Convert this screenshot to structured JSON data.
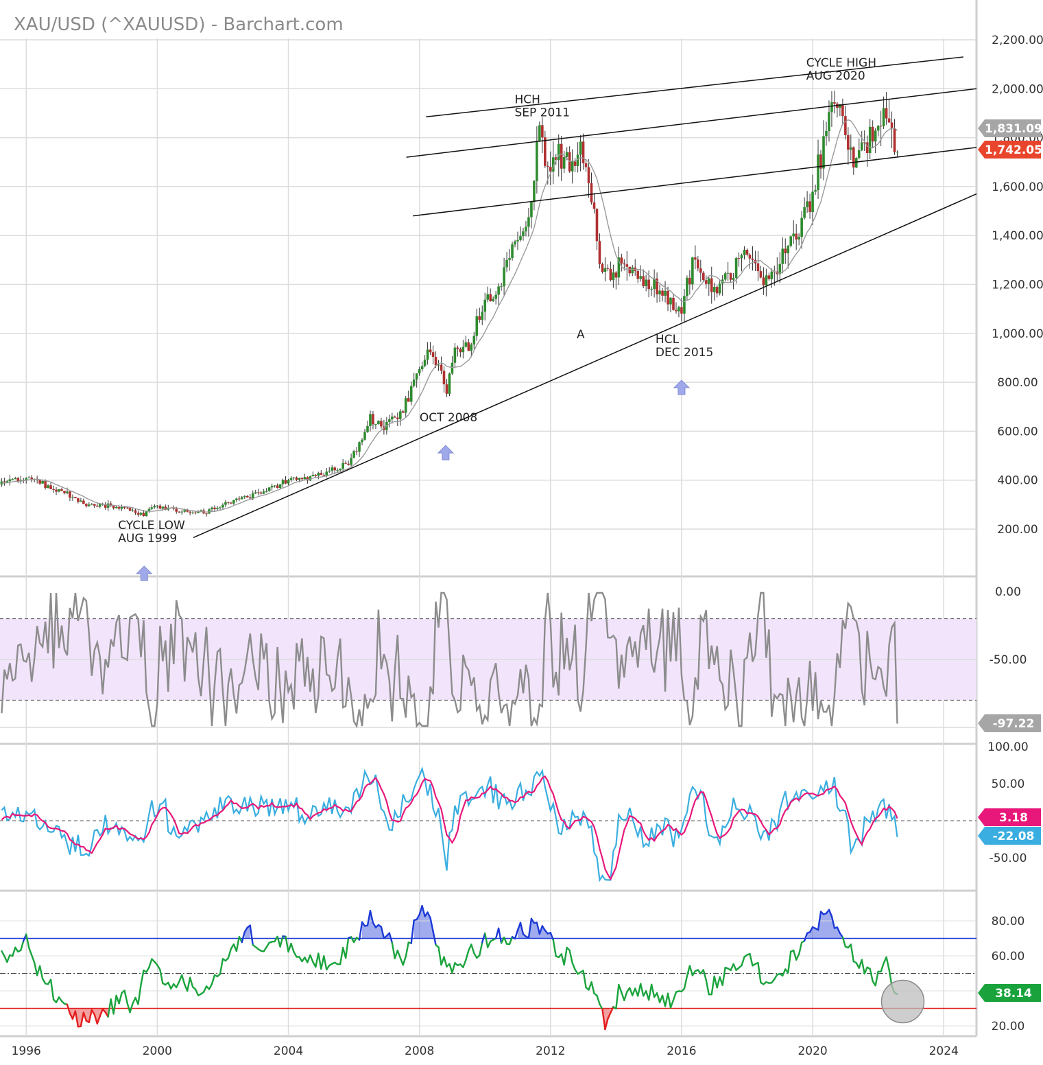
{
  "title": "XAU/USD (^XAUUSD) - Barchart.com",
  "colors": {
    "up": "#2e8b2e",
    "down": "#b03030",
    "ma": "#9a9a9a",
    "trend": "#111111",
    "wr": "#8c8c8c",
    "wr_band": "#f1e4fb",
    "cci_fast": "#3aaee0",
    "cci_slow": "#e8177a",
    "rsi": "#1aa33c",
    "rsi_over": "#1c39d6",
    "rsi_under": "#e31c1c",
    "badge_grey": "#a6a6a6",
    "badge_red": "#e8452c",
    "badge_green": "#1aa33c",
    "badge_blue": "#3aaee0",
    "badge_pink": "#e8177a"
  },
  "chart_data": [
    {
      "type": "candlestick",
      "name": "price",
      "x_ticks": [
        "1996",
        "2000",
        "2004",
        "2008",
        "2012",
        "2016",
        "2020",
        "2024"
      ],
      "y_ticks": [
        "2,200.00",
        "2,000.00",
        "1,800.00",
        "1,600.00",
        "1,400.00",
        "1,200.00",
        "1,000.00",
        "800.00",
        "600.00",
        "400.00",
        "200.00"
      ],
      "ylim": [
        60,
        2200
      ],
      "xlim": [
        1995.2,
        2025
      ],
      "anchors": [
        [
          1995.0,
          385
        ],
        [
          1996.0,
          405
        ],
        [
          1996.6,
          380
        ],
        [
          1997.2,
          345
        ],
        [
          1997.8,
          300
        ],
        [
          1998.5,
          295
        ],
        [
          1999.0,
          285
        ],
        [
          1999.6,
          258
        ],
        [
          1999.8,
          300
        ],
        [
          2000.3,
          285
        ],
        [
          2001.0,
          265
        ],
        [
          2001.5,
          272
        ],
        [
          2002.0,
          300
        ],
        [
          2002.8,
          330
        ],
        [
          2003.5,
          365
        ],
        [
          2004.0,
          400
        ],
        [
          2004.6,
          410
        ],
        [
          2005.2,
          435
        ],
        [
          2005.8,
          470
        ],
        [
          2006.2,
          550
        ],
        [
          2006.5,
          650
        ],
        [
          2006.9,
          620
        ],
        [
          2007.4,
          670
        ],
        [
          2007.8,
          780
        ],
        [
          2008.2,
          920
        ],
        [
          2008.6,
          860
        ],
        [
          2008.8,
          740
        ],
        [
          2009.1,
          930
        ],
        [
          2009.5,
          940
        ],
        [
          2009.9,
          1100
        ],
        [
          2010.5,
          1230
        ],
        [
          2011.0,
          1380
        ],
        [
          2011.4,
          1520
        ],
        [
          2011.65,
          1850
        ],
        [
          2011.9,
          1680
        ],
        [
          2012.2,
          1720
        ],
        [
          2012.7,
          1690
        ],
        [
          2012.9,
          1760
        ],
        [
          2013.2,
          1630
        ],
        [
          2013.5,
          1300
        ],
        [
          2013.9,
          1230
        ],
        [
          2014.2,
          1320
        ],
        [
          2014.8,
          1200
        ],
        [
          2015.4,
          1180
        ],
        [
          2015.95,
          1065
        ],
        [
          2016.4,
          1330
        ],
        [
          2016.9,
          1170
        ],
        [
          2017.5,
          1250
        ],
        [
          2018.0,
          1320
        ],
        [
          2018.6,
          1200
        ],
        [
          2019.0,
          1300
        ],
        [
          2019.5,
          1410
        ],
        [
          2020.0,
          1560
        ],
        [
          2020.6,
          1960
        ],
        [
          2020.9,
          1870
        ],
        [
          2021.2,
          1730
        ],
        [
          2021.7,
          1780
        ],
        [
          2022.2,
          1900
        ],
        [
          2022.4,
          1880
        ],
        [
          2022.55,
          1742
        ]
      ],
      "last_close": "1,742.05",
      "last_ma": "1,831.09",
      "annotations": [
        {
          "lines": [
            "CYCLE LOW",
            "AUG 1999"
          ],
          "x": 1999.6,
          "y": 200,
          "arrow": true
        },
        {
          "lines": [
            "OCT 2008"
          ],
          "x": 2008.8,
          "y": 640,
          "arrow": true
        },
        {
          "lines": [
            "HCH",
            "SEP 2011"
          ],
          "x": 2011.7,
          "y": 1940,
          "arrow": false
        },
        {
          "lines": [
            "A"
          ],
          "x": 2012.8,
          "y": 980,
          "arrow": false
        },
        {
          "lines": [
            "HCL",
            "DEC 2015"
          ],
          "x": 2016.0,
          "y": 960,
          "arrow": true
        },
        {
          "lines": [
            "CYCLE HIGH",
            "AUG 2020"
          ],
          "x": 2020.6,
          "y": 2090,
          "arrow": false
        }
      ],
      "trendlines": [
        [
          [
            2001.1,
            165
          ],
          [
            2025.0,
            1570
          ]
        ],
        [
          [
            2008.2,
            1885
          ],
          [
            2024.6,
            2130
          ]
        ],
        [
          [
            2007.6,
            1720
          ],
          [
            2025.0,
            2000
          ]
        ],
        [
          [
            2007.8,
            1480
          ],
          [
            2025.0,
            1760
          ]
        ]
      ]
    },
    {
      "type": "line",
      "name": "williams",
      "y_ticks": [
        "0.00",
        "-50.00"
      ],
      "ylim": [
        -100,
        0
      ],
      "band": [
        -20,
        -80
      ],
      "last_value": "-97.22"
    },
    {
      "type": "line",
      "name": "cci",
      "y_ticks": [
        "100.00",
        "50.00",
        "-50.00"
      ],
      "ylim": [
        -100,
        100
      ],
      "last_fast": "-22.08",
      "last_slow": "3.18"
    },
    {
      "type": "line",
      "name": "rsi",
      "y_ticks": [
        "80.00",
        "60.00",
        "20.00"
      ],
      "ylim": [
        15,
        90
      ],
      "levels": [
        70,
        50,
        30
      ],
      "anchors": [
        [
          1995.0,
          55
        ],
        [
          1996.0,
          68
        ],
        [
          1996.5,
          48
        ],
        [
          1997.0,
          36
        ],
        [
          1997.3,
          25
        ],
        [
          1998.0,
          24
        ],
        [
          1998.5,
          30
        ],
        [
          1999.0,
          35
        ],
        [
          1999.4,
          30
        ],
        [
          1999.7,
          58
        ],
        [
          2000.3,
          46
        ],
        [
          2001.0,
          45
        ],
        [
          2001.5,
          40
        ],
        [
          2002.2,
          62
        ],
        [
          2002.6,
          74
        ],
        [
          2003.2,
          68
        ],
        [
          2003.8,
          66
        ],
        [
          2004.3,
          62
        ],
        [
          2004.9,
          56
        ],
        [
          2005.6,
          60
        ],
        [
          2006.2,
          72
        ],
        [
          2006.5,
          84
        ],
        [
          2007.0,
          72
        ],
        [
          2007.5,
          54
        ],
        [
          2007.9,
          79
        ],
        [
          2008.2,
          87
        ],
        [
          2008.6,
          58
        ],
        [
          2009.0,
          54
        ],
        [
          2009.6,
          62
        ],
        [
          2010.2,
          70
        ],
        [
          2010.8,
          72
        ],
        [
          2011.3,
          76
        ],
        [
          2011.7,
          78
        ],
        [
          2012.2,
          62
        ],
        [
          2012.8,
          56
        ],
        [
          2013.3,
          40
        ],
        [
          2013.7,
          22
        ],
        [
          2014.1,
          40
        ],
        [
          2014.7,
          42
        ],
        [
          2015.2,
          38
        ],
        [
          2015.8,
          34
        ],
        [
          2016.4,
          56
        ],
        [
          2016.9,
          42
        ],
        [
          2017.5,
          54
        ],
        [
          2018.1,
          60
        ],
        [
          2018.6,
          40
        ],
        [
          2019.1,
          52
        ],
        [
          2019.6,
          66
        ],
        [
          2020.0,
          78
        ],
        [
          2020.6,
          85
        ],
        [
          2021.0,
          65
        ],
        [
          2021.5,
          55
        ],
        [
          2021.9,
          42
        ],
        [
          2022.2,
          60
        ],
        [
          2022.55,
          38.14
        ]
      ],
      "last_value": "38.14"
    }
  ]
}
